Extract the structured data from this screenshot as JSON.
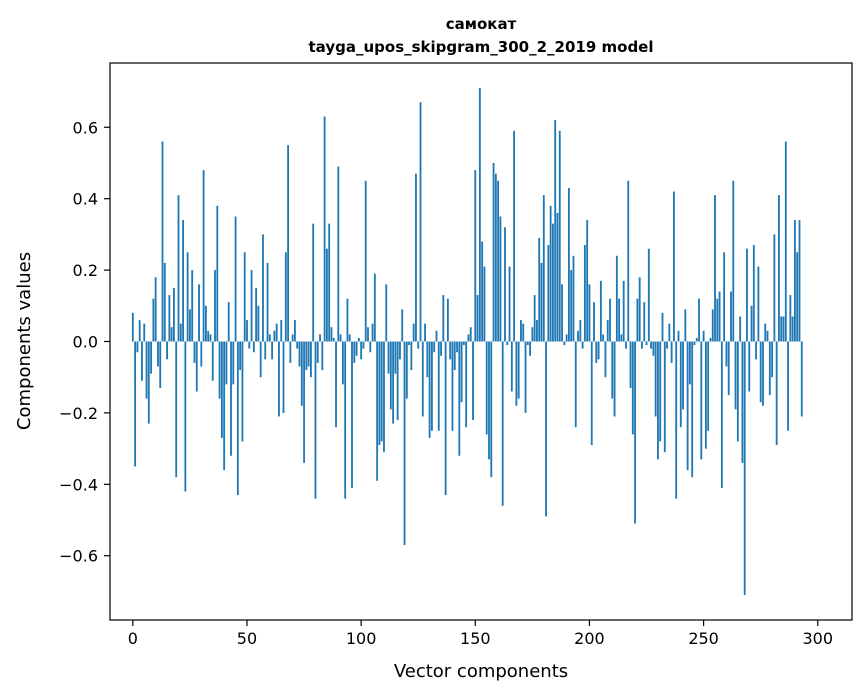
{
  "chart_data": {
    "type": "bar",
    "title": "самокат",
    "subtitle": "tayga_upos_skipgram_300_2_2019 model",
    "xlabel": "Vector components",
    "ylabel": "Components values",
    "xlim": [
      -10,
      315
    ],
    "ylim": [
      -0.78,
      0.78
    ],
    "xticks": [
      0,
      50,
      100,
      150,
      200,
      250,
      300
    ],
    "xtick_labels": [
      "0",
      "50",
      "100",
      "150",
      "200",
      "250",
      "300"
    ],
    "yticks": [
      -0.6,
      -0.4,
      -0.2,
      0.0,
      0.2,
      0.4,
      0.6
    ],
    "ytick_labels": [
      "−0.6",
      "−0.4",
      "−0.2",
      "0.0",
      "0.2",
      "0.4",
      "0.6"
    ],
    "grid": false,
    "bar_color": "#1f77b4",
    "values": [
      0.08,
      -0.35,
      -0.03,
      0.06,
      -0.11,
      0.05,
      -0.16,
      -0.23,
      -0.09,
      0.12,
      0.18,
      -0.07,
      -0.13,
      0.56,
      0.22,
      -0.05,
      0.13,
      0.04,
      0.15,
      -0.38,
      0.41,
      0.05,
      0.34,
      -0.42,
      0.25,
      0.09,
      0.2,
      -0.06,
      -0.14,
      0.16,
      -0.07,
      0.48,
      0.1,
      0.03,
      0.02,
      -0.11,
      0.2,
      0.38,
      -0.16,
      -0.27,
      -0.36,
      -0.12,
      0.11,
      -0.32,
      -0.12,
      0.35,
      -0.43,
      -0.08,
      -0.28,
      0.25,
      0.06,
      -0.02,
      0.2,
      -0.03,
      0.15,
      0.1,
      -0.1,
      0.3,
      -0.05,
      0.22,
      0.02,
      -0.05,
      0.03,
      0.05,
      -0.21,
      0.06,
      -0.2,
      0.25,
      0.55,
      -0.06,
      0.02,
      0.06,
      -0.02,
      -0.07,
      -0.18,
      -0.34,
      -0.08,
      -0.07,
      -0.1,
      0.33,
      -0.44,
      -0.06,
      0.02,
      -0.08,
      0.63,
      0.26,
      0.33,
      0.04,
      0.01,
      -0.24,
      0.49,
      0.02,
      -0.12,
      -0.44,
      0.12,
      0.02,
      -0.41,
      -0.06,
      -0.04,
      0.01,
      -0.05,
      -0.02,
      0.45,
      0.04,
      -0.03,
      0.05,
      0.19,
      -0.39,
      -0.29,
      -0.28,
      -0.31,
      0.16,
      -0.09,
      -0.19,
      -0.23,
      -0.09,
      -0.22,
      -0.05,
      0.09,
      -0.57,
      -0.16,
      -0.01,
      -0.08,
      0.05,
      0.47,
      -0.02,
      0.67,
      -0.21,
      0.05,
      -0.1,
      -0.27,
      -0.25,
      -0.03,
      0.03,
      -0.25,
      -0.04,
      0.13,
      -0.43,
      0.12,
      -0.05,
      -0.25,
      -0.08,
      -0.03,
      -0.32,
      -0.17,
      -0.01,
      -0.24,
      0.02,
      0.04,
      -0.22,
      0.48,
      0.13,
      0.71,
      0.28,
      0.21,
      -0.26,
      -0.33,
      -0.38,
      0.5,
      0.47,
      0.45,
      0.35,
      -0.46,
      0.32,
      -0.01,
      0.21,
      -0.14,
      0.59,
      -0.18,
      -0.16,
      0.06,
      0.05,
      -0.2,
      -0.01,
      -0.04,
      0.04,
      0.13,
      0.06,
      0.29,
      0.22,
      0.41,
      -0.49,
      0.27,
      0.38,
      0.33,
      0.62,
      0.36,
      0.59,
      0.16,
      -0.01,
      0.02,
      0.43,
      0.2,
      0.24,
      -0.24,
      0.03,
      0.06,
      -0.02,
      0.27,
      0.34,
      0.16,
      -0.29,
      0.11,
      -0.06,
      -0.05,
      0.17,
      0.02,
      -0.1,
      0.06,
      0.12,
      -0.16,
      -0.21,
      0.24,
      0.12,
      0.02,
      0.17,
      -0.02,
      0.45,
      -0.13,
      -0.26,
      -0.51,
      0.12,
      0.18,
      -0.02,
      0.11,
      -0.01,
      0.26,
      -0.02,
      -0.04,
      -0.21,
      -0.33,
      -0.28,
      0.08,
      -0.31,
      -0.02,
      0.05,
      -0.06,
      0.42,
      -0.44,
      0.03,
      -0.24,
      -0.19,
      0.09,
      -0.36,
      -0.12,
      -0.38,
      -0.01,
      0.01,
      0.12,
      -0.33,
      0.03,
      -0.3,
      -0.25,
      0.01,
      0.09,
      0.41,
      0.12,
      0.14,
      -0.41,
      0.25,
      -0.07,
      -0.15,
      0.14,
      0.45,
      -0.19,
      -0.28,
      0.07,
      -0.34,
      -0.71,
      0.26,
      -0.14,
      0.1,
      0.27,
      -0.05,
      0.21,
      -0.17,
      -0.18,
      0.05,
      0.03,
      -0.15,
      -0.1,
      0.3,
      -0.29,
      0.41,
      0.07,
      0.07,
      0.56,
      -0.25,
      0.13,
      0.07,
      0.34,
      0.25,
      0.34,
      -0.21
    ]
  }
}
